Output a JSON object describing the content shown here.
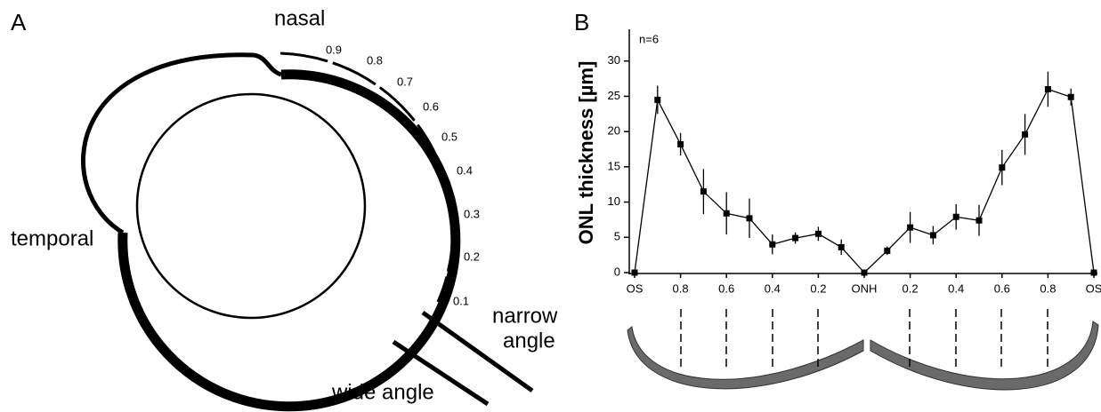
{
  "panel_a": {
    "label": "A",
    "nasal": "nasal",
    "temporal": "temporal",
    "narrow": "narrow",
    "angle": "angle",
    "wide_angle": "wide angle",
    "scale": [
      "0.9",
      "0.8",
      "0.7",
      "0.6",
      "0.5",
      "0.4",
      "0.3",
      "0.2",
      "0.1"
    ]
  },
  "chart_data": {
    "type": "line",
    "panel_label": "B",
    "annotation": "n=6",
    "ylabel": "ONL thickness [µm]",
    "categories": [
      "OS",
      null,
      "0.8",
      null,
      "0.6",
      null,
      "0.4",
      null,
      "0.2",
      null,
      "ONH",
      null,
      "0.2",
      null,
      "0.4",
      null,
      "0.6",
      null,
      "0.8",
      null,
      "OS"
    ],
    "values": [
      0,
      24.5,
      18.2,
      11.5,
      8.4,
      7.7,
      4,
      4.9,
      5.5,
      3.6,
      0,
      3.1,
      6.4,
      5.3,
      7.9,
      7.4,
      14.9,
      19.6,
      26,
      24.9,
      0
    ],
    "errors": [
      0,
      2,
      1.6,
      3.2,
      3,
      2.8,
      1.4,
      0.8,
      1,
      1.1,
      0,
      0.6,
      2.2,
      1.3,
      1.8,
      2.2,
      2.5,
      2.9,
      2.5,
      1.2,
      0
    ],
    "color": "#000000",
    "ylim": [
      0,
      34.5
    ],
    "yticks": [
      0,
      5,
      10,
      15,
      20,
      25,
      30
    ]
  }
}
